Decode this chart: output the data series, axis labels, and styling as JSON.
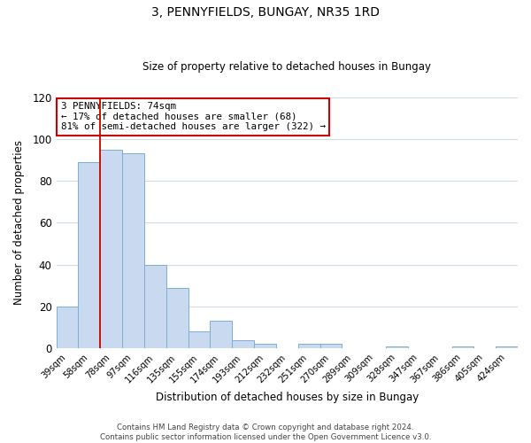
{
  "title": "3, PENNYFIELDS, BUNGAY, NR35 1RD",
  "subtitle": "Size of property relative to detached houses in Bungay",
  "xlabel": "Distribution of detached houses by size in Bungay",
  "ylabel": "Number of detached properties",
  "bar_labels": [
    "39sqm",
    "58sqm",
    "78sqm",
    "97sqm",
    "116sqm",
    "135sqm",
    "155sqm",
    "174sqm",
    "193sqm",
    "212sqm",
    "232sqm",
    "251sqm",
    "270sqm",
    "289sqm",
    "309sqm",
    "328sqm",
    "347sqm",
    "367sqm",
    "386sqm",
    "405sqm",
    "424sqm"
  ],
  "bar_values": [
    20,
    89,
    95,
    93,
    40,
    29,
    8,
    13,
    4,
    2,
    0,
    2,
    2,
    0,
    0,
    1,
    0,
    0,
    1,
    0,
    1
  ],
  "bar_color": "#c9d9f0",
  "bar_edge_color": "#7bafd4",
  "vline_x": 1.5,
  "vline_color": "#cc0000",
  "annotation_text": "3 PENNYFIELDS: 74sqm\n← 17% of detached houses are smaller (68)\n81% of semi-detached houses are larger (322) →",
  "annotation_box_color": "#ffffff",
  "annotation_box_edge_color": "#cc0000",
  "ylim": [
    0,
    120
  ],
  "yticks": [
    0,
    20,
    40,
    60,
    80,
    100,
    120
  ],
  "footnote": "Contains HM Land Registry data © Crown copyright and database right 2024.\nContains public sector information licensed under the Open Government Licence v3.0.",
  "background_color": "#ffffff",
  "grid_color": "#d0dce8"
}
